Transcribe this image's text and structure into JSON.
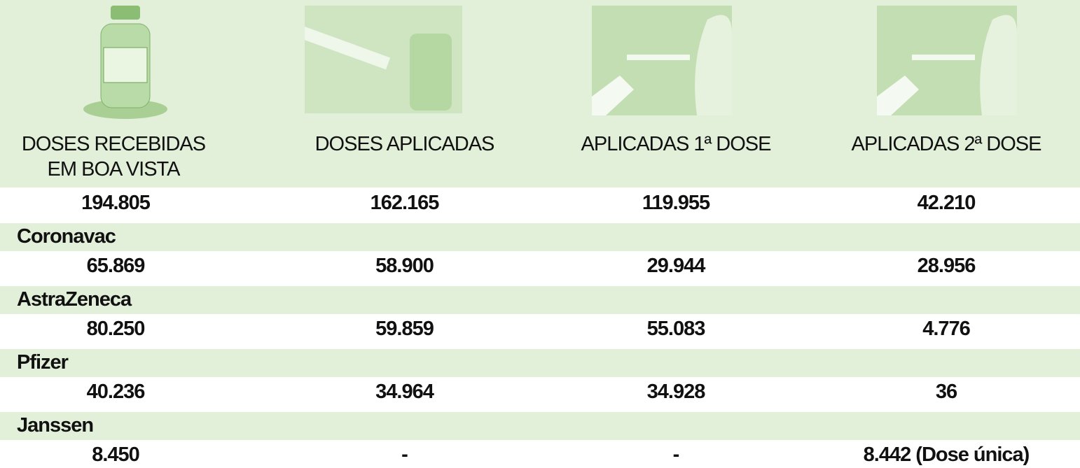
{
  "header": {
    "columns": [
      "DOSES RECEBIDAS EM BOA VISTA",
      "DOSES APLICADAS",
      "APLICADAS 1ª DOSE",
      "APLICADAS 2ª DOSE"
    ]
  },
  "totals": [
    "194.805",
    "162.165",
    "119.955",
    "42.210"
  ],
  "vaccines": [
    {
      "name": "Coronavac",
      "values": [
        "65.869",
        "58.900",
        "29.944",
        "28.956"
      ]
    },
    {
      "name": "AstraZeneca",
      "values": [
        "80.250",
        "59.859",
        "55.083",
        "4.776"
      ]
    },
    {
      "name": "Pfizer",
      "values": [
        "40.236",
        "34.964",
        "34.928",
        "36"
      ]
    },
    {
      "name": "Janssen",
      "values": [
        "8.450",
        "-",
        "-",
        "8.442 (Dose única)"
      ]
    }
  ]
}
